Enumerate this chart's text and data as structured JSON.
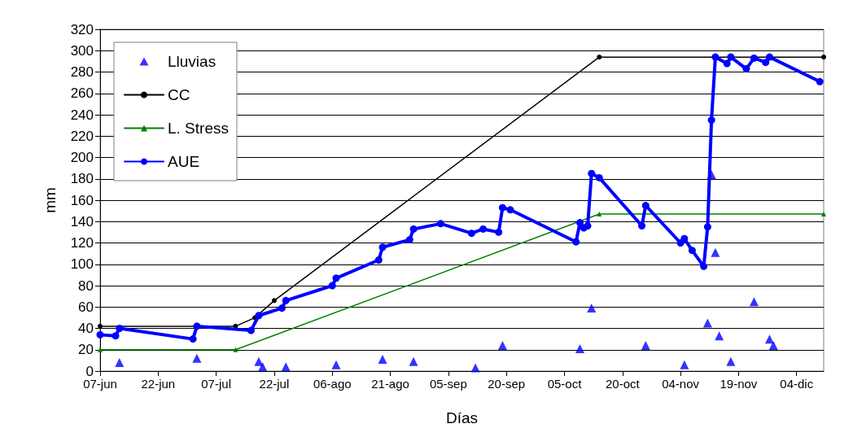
{
  "chart_data": {
    "type": "line",
    "xlabel": "Días",
    "ylabel": "mm",
    "xlim": [
      "--06-07",
      "--12-11"
    ],
    "xticks": [
      {
        "value": "--06-07",
        "label": "07-jun"
      },
      {
        "value": "--06-22",
        "label": "22-jun"
      },
      {
        "value": "--07-07",
        "label": "07-jul"
      },
      {
        "value": "--07-22",
        "label": "22-jul"
      },
      {
        "value": "--08-06",
        "label": "06-ago"
      },
      {
        "value": "--08-21",
        "label": "21-ago"
      },
      {
        "value": "--09-05",
        "label": "05-sep"
      },
      {
        "value": "--09-20",
        "label": "20-sep"
      },
      {
        "value": "--10-05",
        "label": "05-oct"
      },
      {
        "value": "--10-20",
        "label": "20-oct"
      },
      {
        "value": "--11-04",
        "label": "04-nov"
      },
      {
        "value": "--11-19",
        "label": "19-nov"
      },
      {
        "value": "--12-04",
        "label": "04-dic"
      }
    ],
    "ylim": [
      0,
      320
    ],
    "yticks": [
      0,
      20,
      40,
      60,
      80,
      100,
      120,
      140,
      160,
      180,
      200,
      220,
      240,
      260,
      280,
      300,
      320
    ],
    "grid": "y",
    "legend": "top left",
    "series": [
      {
        "name": "Lluvias",
        "type": "scatter",
        "marker": "triangle",
        "color": "#0000ff",
        "x": [
          "--06-12",
          "--07-02",
          "--07-18",
          "--07-19",
          "--07-25",
          "--08-07",
          "--08-19",
          "--08-27",
          "--09-12",
          "--09-19",
          "--10-09",
          "--10-12",
          "--10-26",
          "--11-05",
          "--11-11",
          "--11-12",
          "--11-13",
          "--11-14",
          "--11-17",
          "--11-23",
          "--11-27",
          "--11-28"
        ],
        "values": [
          8,
          12,
          9,
          4,
          4,
          6,
          11,
          9,
          3,
          24,
          21,
          59,
          24,
          6,
          45,
          184,
          111,
          33,
          9,
          65,
          30,
          24
        ]
      },
      {
        "name": "CC",
        "marker": "circle",
        "color": "#000000",
        "x": [
          "--06-07",
          "--07-12",
          "--07-17",
          "--07-22",
          "--10-14",
          "--12-11"
        ],
        "values": [
          42,
          42,
          50,
          66,
          294,
          294
        ]
      },
      {
        "name": "L. Stress",
        "marker": "triangle",
        "color": "#008000",
        "x": [
          "--06-07",
          "--07-12",
          "--10-14",
          "--12-11"
        ],
        "values": [
          20,
          20,
          147,
          147
        ]
      },
      {
        "name": "AUE",
        "marker": "circle",
        "color": "#0000ff",
        "x": [
          "--06-07",
          "--06-11",
          "--06-12",
          "--07-01",
          "--07-02",
          "--07-16",
          "--07-18",
          "--07-24",
          "--07-25",
          "--08-06",
          "--08-07",
          "--08-18",
          "--08-19",
          "--08-26",
          "--08-27",
          "--09-03",
          "--09-11",
          "--09-14",
          "--09-18",
          "--09-19",
          "--09-21",
          "--10-08",
          "--10-09",
          "--10-10",
          "--10-11",
          "--10-12",
          "--10-14",
          "--10-25",
          "--10-26",
          "--11-04",
          "--11-05",
          "--11-07",
          "--11-10",
          "--11-11",
          "--11-12",
          "--11-13",
          "--11-16",
          "--11-17",
          "--11-21",
          "--11-23",
          "--11-26",
          "--11-27",
          "--12-10"
        ],
        "values": [
          34,
          33,
          40,
          30,
          42,
          38,
          52,
          59,
          66,
          80,
          87,
          104,
          116,
          123,
          133,
          138,
          129,
          133,
          130,
          153,
          151,
          121,
          139,
          134,
          136,
          185,
          181,
          136,
          155,
          120,
          124,
          113,
          98,
          135,
          235,
          294,
          288,
          294,
          283,
          293,
          289,
          294,
          271
        ]
      }
    ]
  }
}
